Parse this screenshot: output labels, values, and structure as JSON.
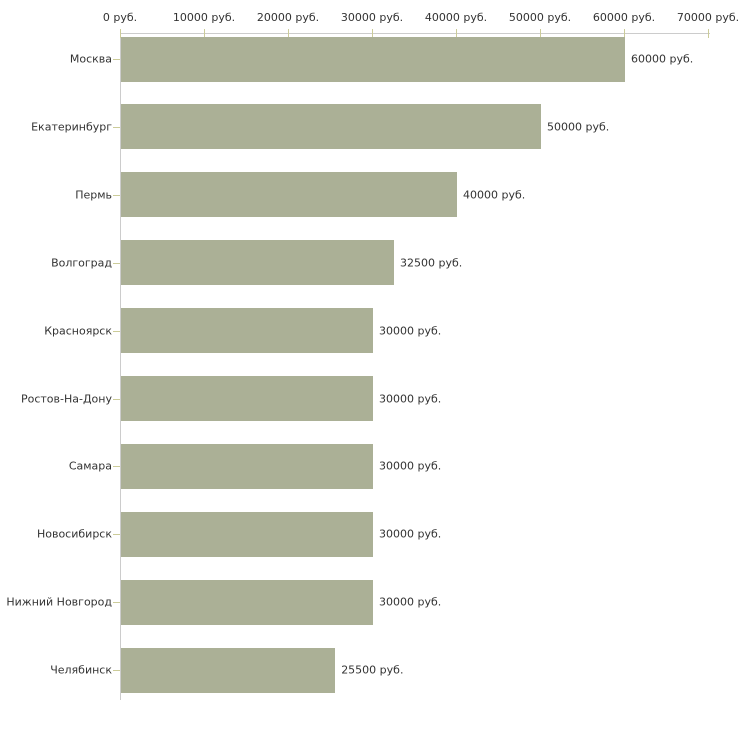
{
  "chart_data": {
    "type": "bar",
    "orientation": "horizontal",
    "title": "",
    "xlabel": "",
    "ylabel": "",
    "grid": false,
    "legend": false,
    "xlim": [
      0,
      70000
    ],
    "x_ticks": [
      0,
      10000,
      20000,
      30000,
      40000,
      50000,
      60000,
      70000
    ],
    "x_tick_labels": [
      "0 руб.",
      "10000 руб.",
      "20000 руб.",
      "30000 руб.",
      "40000 руб.",
      "50000 руб.",
      "60000 руб.",
      "70000 руб."
    ],
    "categories": [
      "Москва",
      "Екатеринбург",
      "Пермь",
      "Волгоград",
      "Красноярск",
      "Ростов-На-Дону",
      "Самара",
      "Новосибирск",
      "Нижний Новгород",
      "Челябинск"
    ],
    "values": [
      60000,
      50000,
      40000,
      32500,
      30000,
      30000,
      30000,
      30000,
      30000,
      25500
    ],
    "value_labels": [
      "60000 руб.",
      "50000 руб.",
      "40000 руб.",
      "32500 руб.",
      "30000 руб.",
      "30000 руб.",
      "30000 руб.",
      "30000 руб.",
      "30000 руб.",
      "25500 руб."
    ],
    "colors": {
      "bar": "#abb096",
      "axis_line": "#cccccc",
      "tick_mark": "#cccc99",
      "text": "#333333",
      "background": "#ffffff"
    }
  }
}
